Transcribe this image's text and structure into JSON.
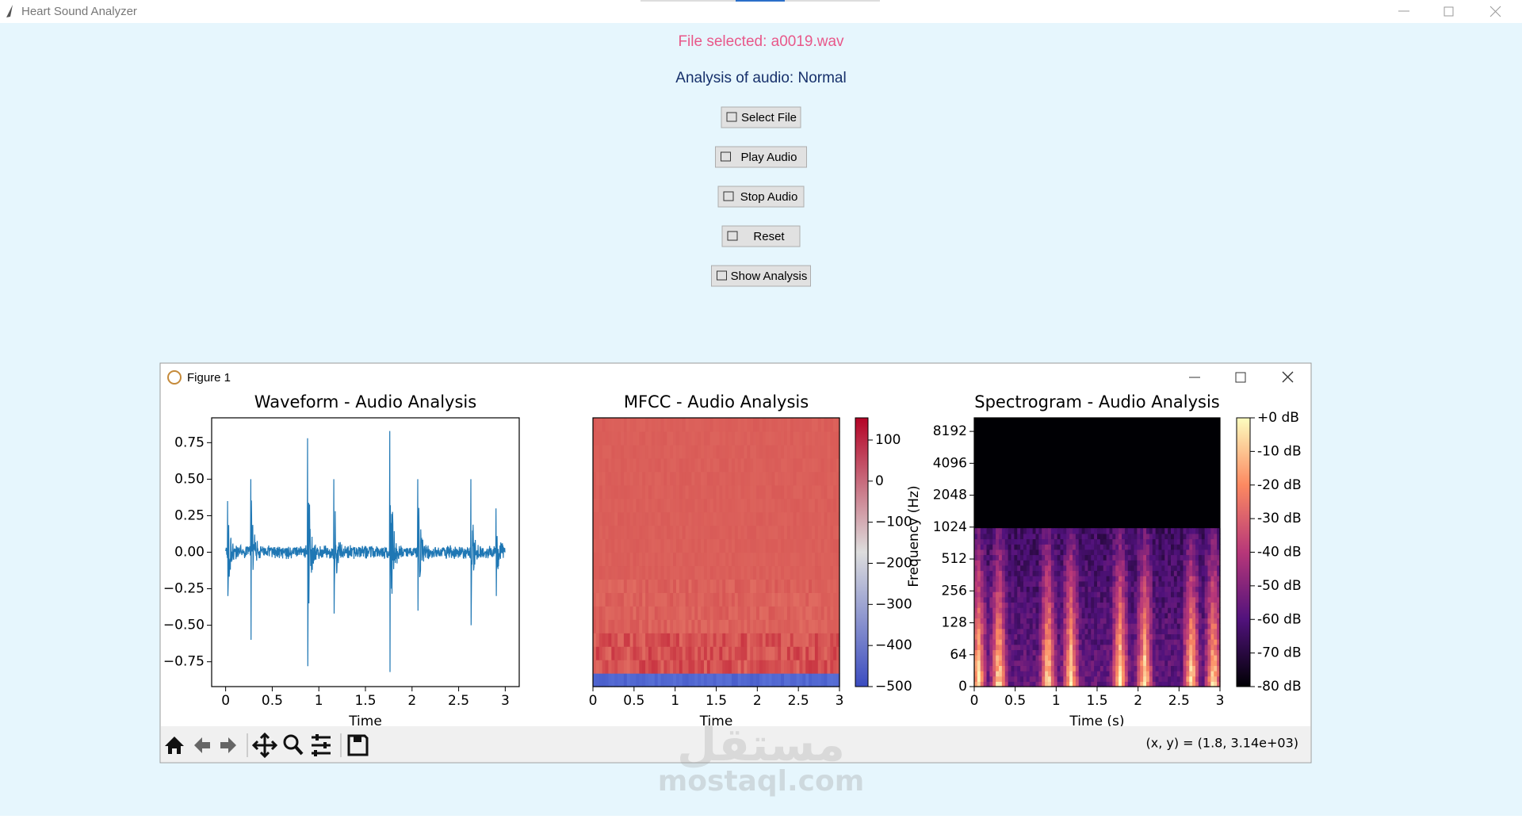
{
  "window": {
    "title": "Heart Sound Analyzer"
  },
  "status": {
    "file": "File selected: a0019.wav",
    "analysis": "Analysis of audio: Normal"
  },
  "buttons": [
    "Select File",
    "Play Audio",
    "Stop Audio",
    "Reset",
    "Show Analysis"
  ],
  "figure": {
    "title": "Figure 1",
    "coords": "(x, y) = (1.8, 3.14e+03)"
  },
  "watermark": [
    "مستقل",
    "mostaql.com"
  ],
  "chart_data": [
    {
      "type": "line",
      "title": "Waveform - Audio Analysis",
      "xlabel": "Time",
      "color": "#1f77b4",
      "xlim": [
        -0.15,
        3.15
      ],
      "xticks": [
        0,
        {
          "value": 0.5,
          "label": "0.5"
        },
        1,
        {
          "value": 1.5,
          "label": "1.5"
        },
        2,
        {
          "value": 2.5,
          "label": "2.5"
        },
        3
      ],
      "ylim": [
        -0.92,
        0.92
      ],
      "yticks": [
        {
          "value": -0.75,
          "label": "−0.75"
        },
        {
          "value": -0.5,
          "label": "−0.50"
        },
        {
          "value": -0.25,
          "label": "−0.25"
        },
        {
          "value": 0,
          "label": "0.00"
        },
        {
          "value": 0.25,
          "label": "0.25"
        },
        {
          "value": 0.5,
          "label": "0.50"
        },
        {
          "value": 0.75,
          "label": "0.75"
        }
      ]
    },
    {
      "type": "heatmap",
      "title": "MFCC - Audio Analysis",
      "xlabel": "Time",
      "xlim": [
        0,
        3
      ],
      "xticks": [
        0,
        0.5,
        1,
        1.5,
        2,
        2.5,
        3
      ],
      "cmap": "coolwarm",
      "colorbar": {
        "lim": [
          -500,
          154
        ],
        "ticks": [
          {
            "value": -500,
            "label": "−500"
          },
          {
            "value": -400,
            "label": "−400"
          },
          {
            "value": -300,
            "label": "−300"
          },
          {
            "value": -200,
            "label": "−200"
          },
          {
            "value": -100,
            "label": "−100"
          },
          0,
          100
        ]
      }
    },
    {
      "type": "heatmap",
      "title": "Spectrogram - Audio Analysis",
      "xlabel": "Time (s)",
      "ylabel": "Frequency (Hz)",
      "xlim": [
        0,
        3
      ],
      "xticks": [
        0,
        0.5,
        1,
        1.5,
        2,
        2.5,
        3
      ],
      "cmap": "magma",
      "ylim": [
        0,
        11000
      ],
      "yscale": "symlog",
      "linthresh": 64,
      "yticks": [
        0,
        64,
        128,
        256,
        512,
        1024,
        2048,
        4096,
        8192
      ],
      "colorbar": {
        "lim": [
          -80,
          0
        ],
        "ticks": [
          {
            "value": -80,
            "label": "-80 dB"
          },
          {
            "value": -70,
            "label": "-70 dB"
          },
          {
            "value": -60,
            "label": "-60 dB"
          },
          {
            "value": -50,
            "label": "-50 dB"
          },
          {
            "value": -40,
            "label": "-40 dB"
          },
          {
            "value": -30,
            "label": "-30 dB"
          },
          {
            "value": -20,
            "label": "-20 dB"
          },
          {
            "value": -10,
            "label": "-10 dB"
          },
          {
            "value": 0,
            "label": "+0 dB"
          }
        ]
      }
    }
  ]
}
